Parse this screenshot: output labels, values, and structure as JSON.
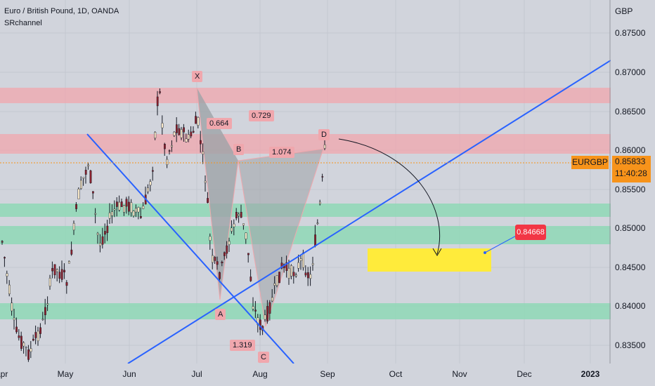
{
  "header": {
    "title": "Euro / British Pound, 1D, OANDA",
    "indicator": "SRchannel"
  },
  "price_axis": {
    "currency": "GBP",
    "labels": [
      "0.87500",
      "0.87000",
      "0.86500",
      "0.86000",
      "0.85500",
      "0.85000",
      "0.84500",
      "0.84000",
      "0.83500"
    ]
  },
  "time_axis": {
    "labels": [
      "Apr",
      "May",
      "Jun",
      "Jul",
      "Aug",
      "Sep",
      "Oct",
      "Nov",
      "Dec",
      "2023"
    ]
  },
  "symbol": "EURGBP",
  "last_price": "0.85833",
  "countdown": "11:40:28",
  "target": "0.84668",
  "pattern": {
    "points": {
      "x": "X",
      "a": "A",
      "b": "B",
      "c": "C",
      "d": "D"
    },
    "ratios": {
      "xa_b": "0.664",
      "ab_c": "0.729",
      "bc_d": "1.074",
      "xa_c": "1.319"
    }
  },
  "colors": {
    "resistance_zone": "#f0a7ad",
    "support_zone": "#8fd8b6",
    "target_zone": "#ffeb3b",
    "trendline": "#2962ff",
    "badge": "#f7931a",
    "target_badge": "#f23645"
  }
}
